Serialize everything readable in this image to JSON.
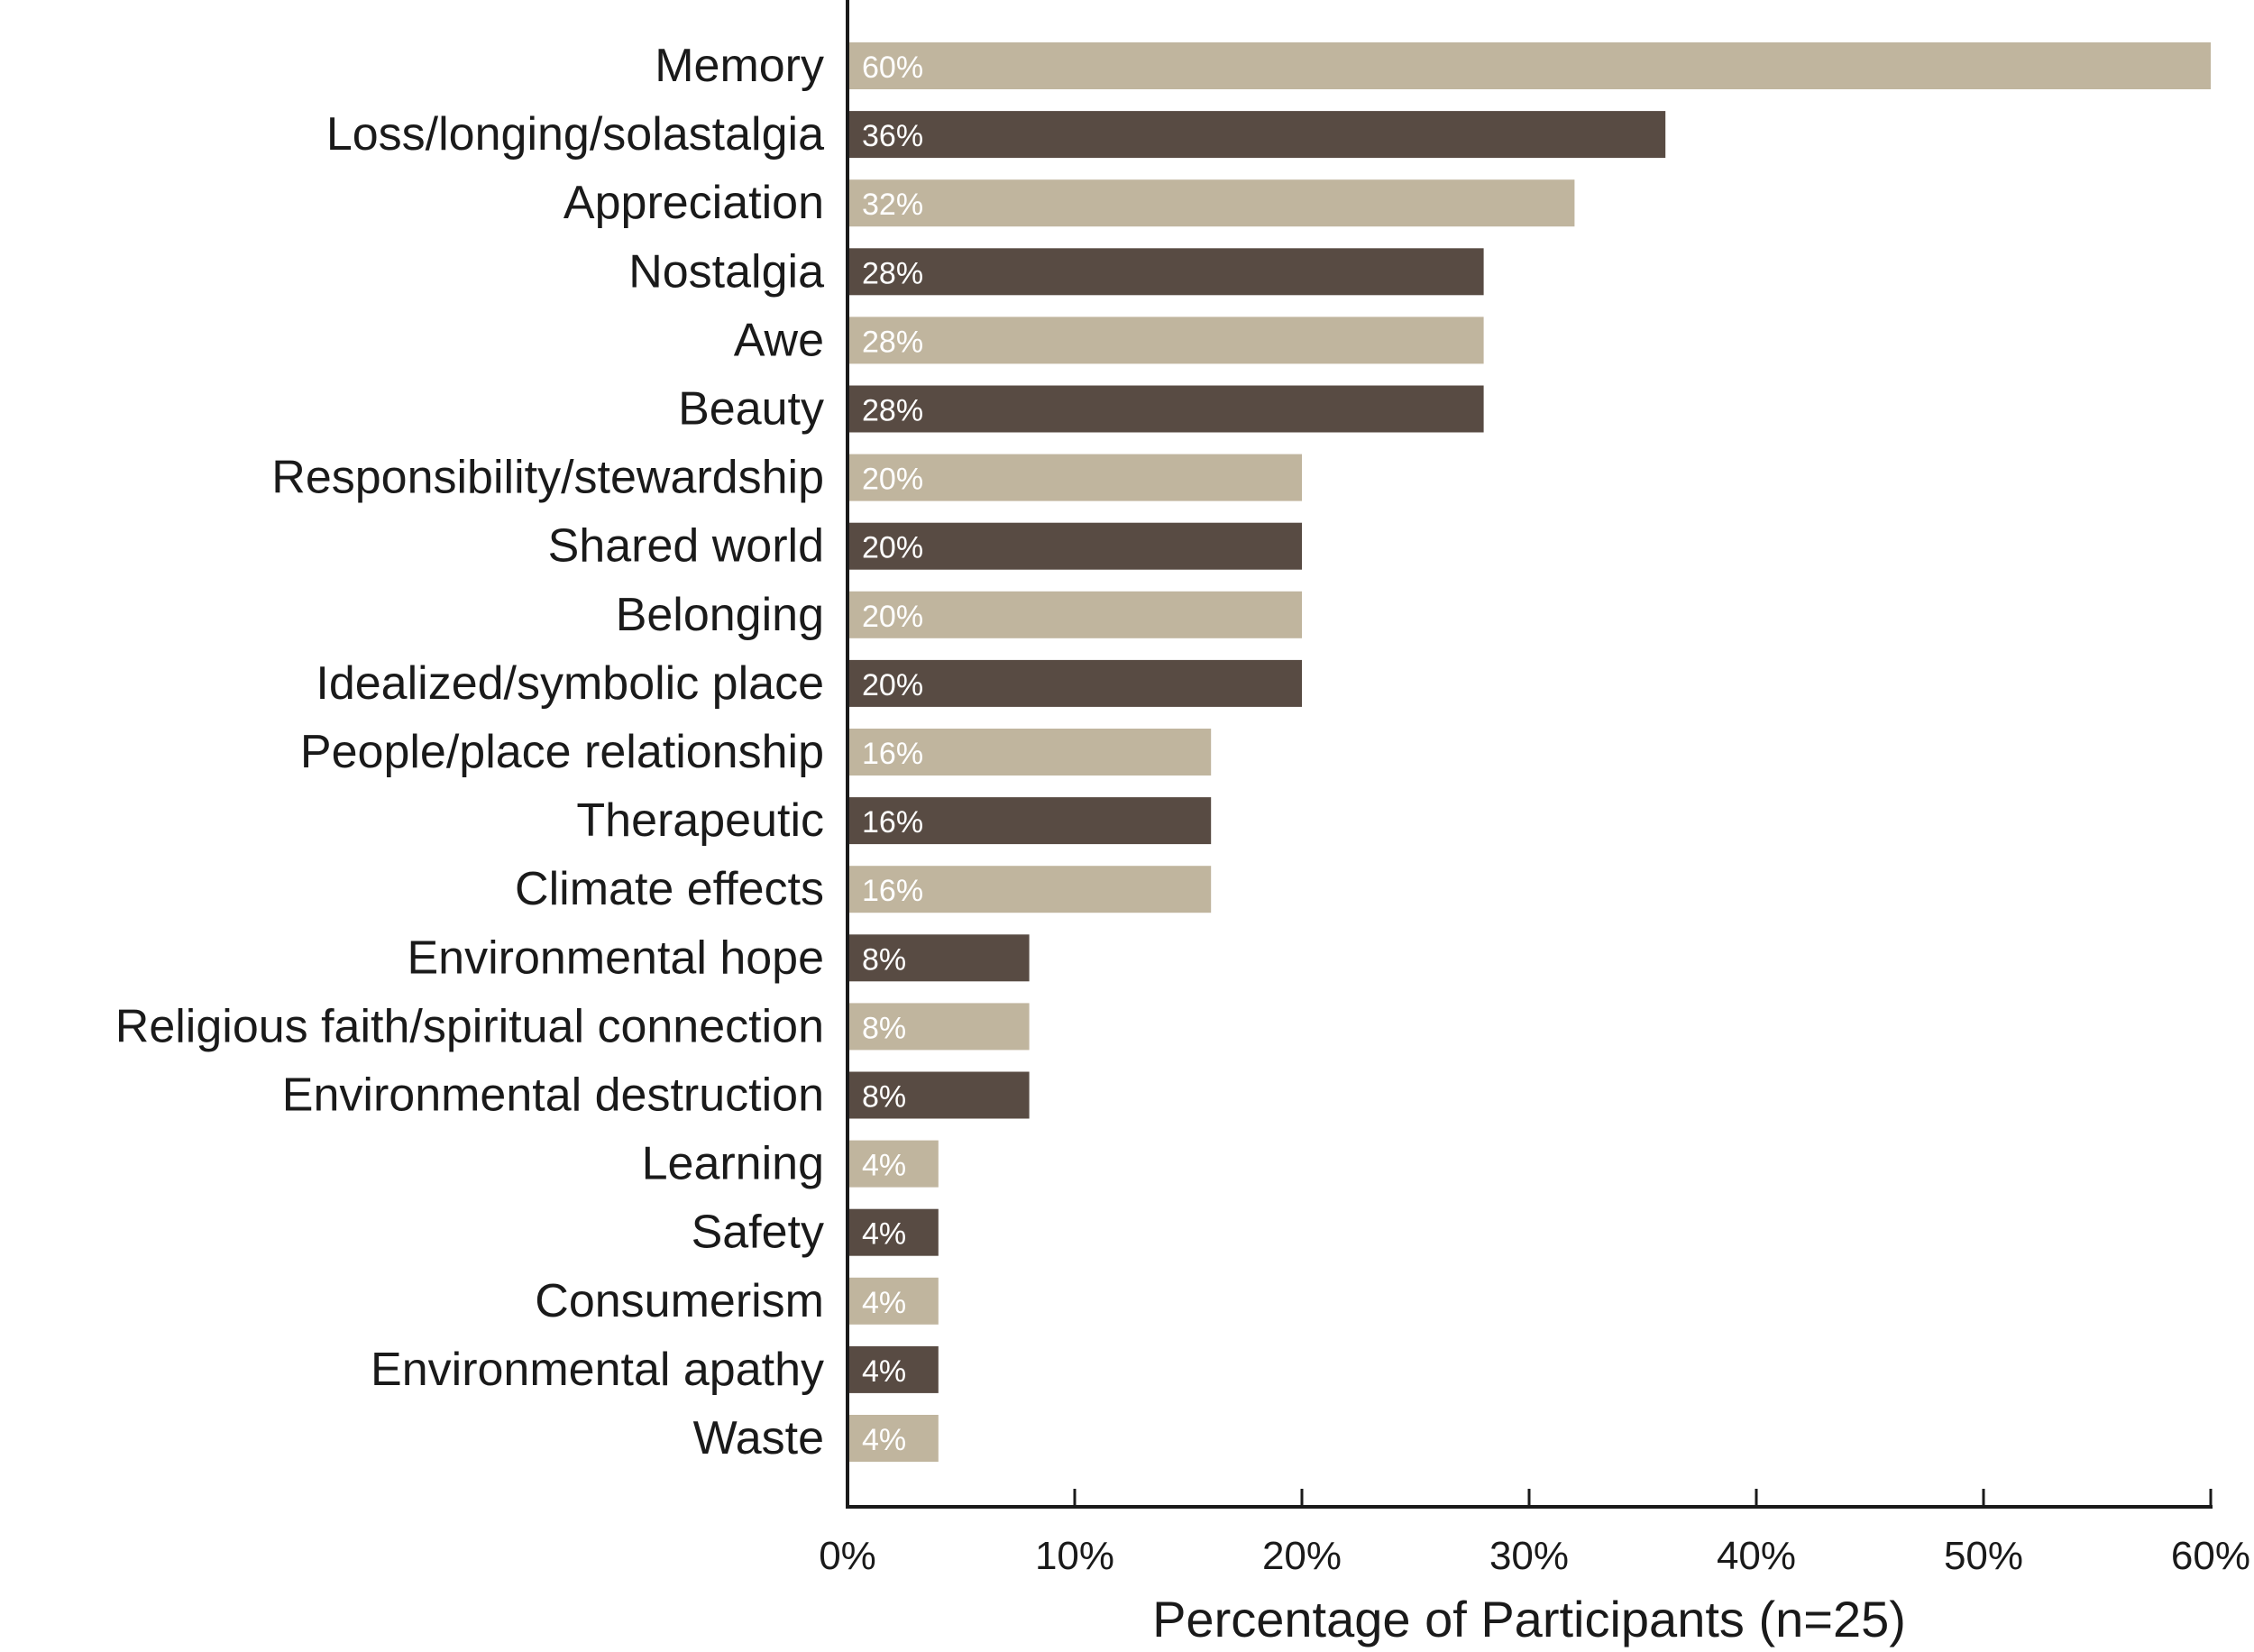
{
  "chart_data": {
    "type": "bar",
    "orientation": "horizontal",
    "categories": [
      "Memory",
      "Loss/longing/solastalgia",
      "Appreciation",
      "Nostalgia",
      "Awe",
      "Beauty",
      "Responsibility/stewardship",
      "Shared world",
      "Belonging",
      "Idealized/symbolic place",
      "People/place relationship",
      "Therapeutic",
      "Climate effects",
      "Environmental hope",
      "Religious faith/spiritual connection",
      "Environmental destruction",
      "Learning",
      "Safety",
      "Consumerism",
      "Environmental apathy",
      "Waste"
    ],
    "values": [
      60,
      36,
      32,
      28,
      28,
      28,
      20,
      20,
      20,
      20,
      16,
      16,
      16,
      8,
      8,
      8,
      4,
      4,
      4,
      4,
      4
    ],
    "data_labels": [
      "60%",
      "36%",
      "32%",
      "28%",
      "28%",
      "28%",
      "20%",
      "20%",
      "20%",
      "20%",
      "16%",
      "16%",
      "16%",
      "8%",
      "8%",
      "8%",
      "4%",
      "4%",
      "4%",
      "4%",
      "4%"
    ],
    "xlabel": "Percentage of Participants (n=25)",
    "xlim": [
      0,
      60
    ],
    "xticks": [
      0,
      10,
      20,
      30,
      40,
      50,
      60
    ],
    "xtick_labels": [
      "0%",
      "10%",
      "20%",
      "30%",
      "40%",
      "50%",
      "60%"
    ],
    "grid": false,
    "legend": "none",
    "colors": {
      "light": "#c0b59e",
      "dark": "#584b43",
      "axis": "#1a1a1a",
      "label_text": "#ffffff"
    }
  }
}
